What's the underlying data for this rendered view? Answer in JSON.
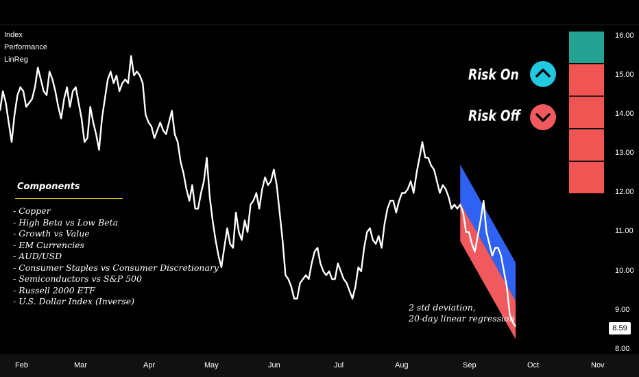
{
  "legend": [
    "Index",
    "Performance",
    "LinReg"
  ],
  "risk": {
    "on_label": "Risk On",
    "off_label": "Risk Off",
    "on_color": "#22c7e0",
    "off_color": "#f05a5e"
  },
  "components": {
    "title": "Components",
    "items": [
      "- Copper",
      "- High Beta vs Low Beta",
      "- Growth vs Value",
      "- EM Currencies",
      "- AUD/USD",
      "- Consumer Staples vs Consumer Discretionary",
      "- Semiconductors vs S&P 500",
      "- Russell 2000 ETF",
      "- U.S. Dollar Index (Inverse)"
    ]
  },
  "note": {
    "line1": "2 std deviation,",
    "line2": "20-day linear regression"
  },
  "signal_boxes": {
    "colors": [
      "#24a395",
      "#ef5552",
      "#ef5552",
      "#ef5552",
      "#ef5552"
    ]
  },
  "chart_data": {
    "type": "line",
    "ylim": [
      8.0,
      16.0
    ],
    "y_ticks": [
      "16.00",
      "15.00",
      "14.00",
      "13.00",
      "12.00",
      "11.00",
      "10.00",
      "9.00",
      "8.00"
    ],
    "x_ticks": [
      "Feb",
      "Mar",
      "Apr",
      "May",
      "Jun",
      "Jul",
      "Aug",
      "Sep",
      "Oct",
      "Nov"
    ],
    "last_value": "8.59",
    "series": [
      {
        "values": [
          14.1,
          14.6,
          14.3,
          13.8,
          13.3,
          14.0,
          14.5,
          14.7,
          14.6,
          14.2,
          14.3,
          14.4,
          14.7,
          15.2,
          14.9,
          14.6,
          14.5,
          15.1,
          14.9,
          14.6,
          14.2,
          13.9,
          14.4,
          14.7,
          14.2,
          14.6,
          14.7,
          14.3,
          13.9,
          13.3,
          13.4,
          14.2,
          13.8,
          13.5,
          13.1,
          13.9,
          14.4,
          14.9,
          15.1,
          14.8,
          15.0,
          14.6,
          14.8,
          14.9,
          14.8,
          15.5,
          15.0,
          15.1,
          15.0,
          14.8,
          14.0,
          13.8,
          13.7,
          13.4,
          13.6,
          13.8,
          13.6,
          13.5,
          13.8,
          14.1,
          13.5,
          13.3,
          12.8,
          12.5,
          12.1,
          11.8,
          12.2,
          11.6,
          11.6,
          12.0,
          12.3,
          12.9,
          11.9,
          11.3,
          10.8,
          10.4,
          10.1,
          10.6,
          11.1,
          10.7,
          10.6,
          11.5,
          11.0,
          10.8,
          11.3,
          11.0,
          11.7,
          11.8,
          12.0,
          11.6,
          12.1,
          12.4,
          12.2,
          12.3,
          12.6,
          12.2,
          11.5,
          10.8,
          9.9,
          9.8,
          9.6,
          9.3,
          9.3,
          9.7,
          9.8,
          9.9,
          9.8,
          10.2,
          10.5,
          10.6,
          10.2,
          10.0,
          9.9,
          10.0,
          9.8,
          9.8,
          10.2,
          10.0,
          9.8,
          9.7,
          9.5,
          9.3,
          9.6,
          10.1,
          10.0,
          10.6,
          11.0,
          11.1,
          10.8,
          10.7,
          10.9,
          10.6,
          11.2,
          11.6,
          11.8,
          11.8,
          11.5,
          11.8,
          12.0,
          12.0,
          12.1,
          12.3,
          12.0,
          12.5,
          12.9,
          13.3,
          12.9,
          12.9,
          12.7,
          12.6,
          12.3,
          12.0,
          12.2,
          12.1,
          11.9,
          11.6,
          11.7,
          11.6,
          11.7,
          11.5,
          11.0,
          11.0,
          10.7,
          10.5,
          10.9,
          11.3,
          11.8,
          11.0,
          10.7,
          10.4,
          10.6,
          10.6,
          10.4,
          10.0,
          9.6,
          8.9,
          8.7,
          8.59
        ]
      }
    ]
  }
}
